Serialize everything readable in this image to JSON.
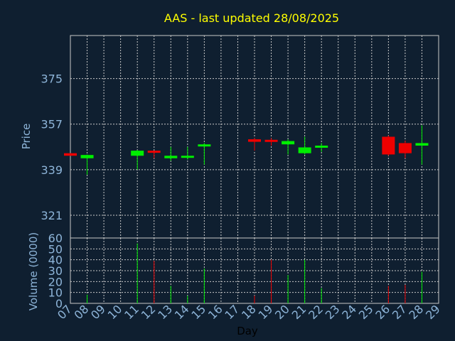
{
  "chart_data": [
    {
      "type": "candlestick",
      "title": "AAS - last updated 28/08/2025",
      "ylabel": "Price",
      "xlabel": "",
      "ylim": [
        312,
        392
      ],
      "yticks": [
        321,
        339,
        357,
        375
      ],
      "grid": true,
      "days": [
        "07",
        "08",
        "09",
        "10",
        "11",
        "12",
        "13",
        "14",
        "15",
        "16",
        "17",
        "18",
        "19",
        "20",
        "21",
        "22",
        "23",
        "24",
        "25",
        "26",
        "27",
        "28",
        "29"
      ],
      "candles": [
        {
          "day": 7,
          "open": 345.5,
          "close": 344.5,
          "high": 345.5,
          "low": 344.5,
          "color": "red"
        },
        {
          "day": 8,
          "open": 343.5,
          "close": 344.8,
          "high": 345.0,
          "low": 337.0,
          "color": "green"
        },
        {
          "day": 11,
          "open": 344.5,
          "close": 346.5,
          "high": 346.8,
          "low": 339.0,
          "color": "green"
        },
        {
          "day": 12,
          "open": 346.5,
          "close": 345.8,
          "high": 346.5,
          "low": 343.5,
          "color": "red"
        },
        {
          "day": 13,
          "open": 343.5,
          "close": 344.5,
          "high": 348.0,
          "low": 342.5,
          "color": "green"
        },
        {
          "day": 14,
          "open": 344.0,
          "close": 344.5,
          "high": 348.0,
          "low": 343.0,
          "color": "green"
        },
        {
          "day": 15,
          "open": 348.5,
          "close": 349.0,
          "high": 349.5,
          "low": 341.0,
          "color": "green"
        },
        {
          "day": 18,
          "open": 351.0,
          "close": 350.0,
          "high": 351.5,
          "low": 346.5,
          "color": "red"
        },
        {
          "day": 19,
          "open": 350.8,
          "close": 350.0,
          "high": 351.5,
          "low": 348.5,
          "color": "red"
        },
        {
          "day": 20,
          "open": 349.0,
          "close": 350.3,
          "high": 351.0,
          "low": 345.0,
          "color": "green"
        },
        {
          "day": 21,
          "open": 345.5,
          "close": 347.8,
          "high": 352.0,
          "low": 345.0,
          "color": "green"
        },
        {
          "day": 22,
          "open": 348.0,
          "close": 348.5,
          "high": 349.5,
          "low": 346.0,
          "color": "green"
        },
        {
          "day": 26,
          "open": 352.0,
          "close": 345.0,
          "high": 352.5,
          "low": 344.5,
          "color": "red"
        },
        {
          "day": 27,
          "open": 349.5,
          "close": 345.5,
          "high": 350.5,
          "low": 343.5,
          "color": "red"
        },
        {
          "day": 28,
          "open": 348.5,
          "close": 349.5,
          "high": 356.5,
          "low": 341.0,
          "color": "green"
        }
      ]
    },
    {
      "type": "bar",
      "ylabel": "Volume (0000)",
      "xlabel": "Day",
      "ylim": [
        0,
        60
      ],
      "yticks": [
        0,
        10,
        20,
        30,
        40,
        50,
        60
      ],
      "grid": true,
      "bars": [
        {
          "day": 8,
          "value": 8,
          "color": "green"
        },
        {
          "day": 11,
          "value": 55,
          "color": "green"
        },
        {
          "day": 12,
          "value": 39,
          "color": "red"
        },
        {
          "day": 13,
          "value": 16,
          "color": "green"
        },
        {
          "day": 14,
          "value": 7,
          "color": "green"
        },
        {
          "day": 15,
          "value": 32,
          "color": "green"
        },
        {
          "day": 18,
          "value": 7,
          "color": "red"
        },
        {
          "day": 19,
          "value": 40,
          "color": "red"
        },
        {
          "day": 20,
          "value": 26,
          "color": "green"
        },
        {
          "day": 21,
          "value": 40,
          "color": "green"
        },
        {
          "day": 22,
          "value": 14,
          "color": "green"
        },
        {
          "day": 26,
          "value": 16,
          "color": "red"
        },
        {
          "day": 27,
          "value": 17,
          "color": "red"
        },
        {
          "day": 28,
          "value": 29,
          "color": "green"
        }
      ]
    }
  ],
  "colors": {
    "green": "#00ee00",
    "red": "#ee0000",
    "background": "#0f1f30",
    "title": "#ffff00",
    "axis_text": "#8db4d8"
  }
}
